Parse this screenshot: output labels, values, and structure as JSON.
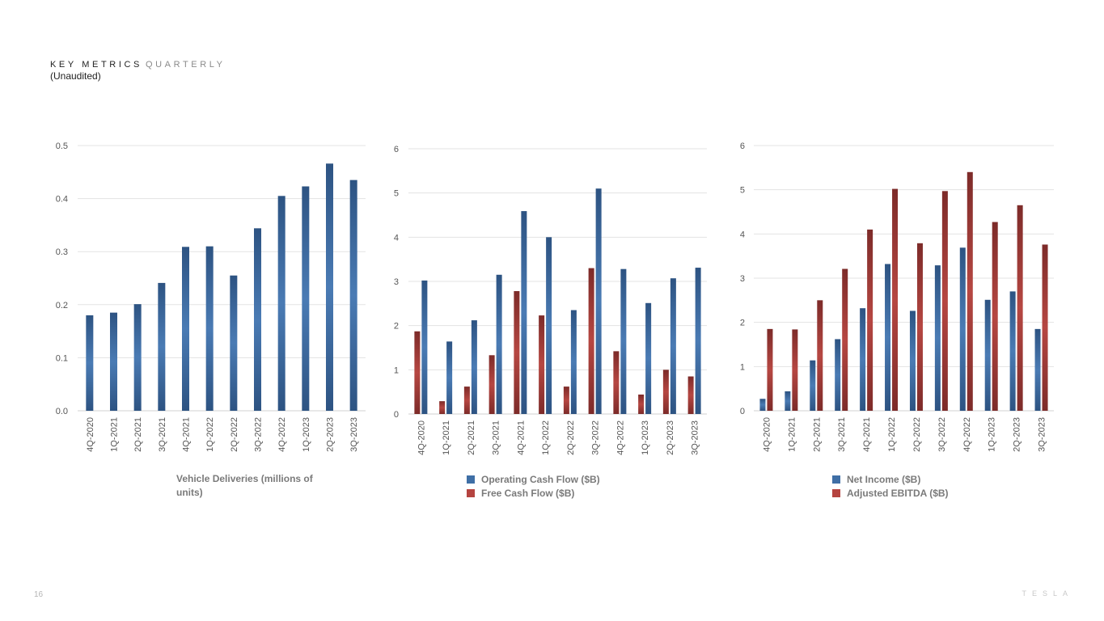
{
  "header": {
    "title_bold": "KEY METRICS",
    "title_light": "QUARTERLY",
    "subtitle": "(Unaudited)"
  },
  "page_number": "16",
  "brand": "TESLA",
  "colors": {
    "blue": "#3c6699",
    "red": "#9e3a38",
    "grid": "#e3e3e3"
  },
  "chart_data": [
    {
      "type": "bar",
      "categories": [
        "4Q-2020",
        "1Q-2021",
        "2Q-2021",
        "3Q-2021",
        "4Q-2021",
        "1Q-2022",
        "2Q-2022",
        "3Q-2022",
        "4Q-2022",
        "1Q-2023",
        "2Q-2023",
        "3Q-2023"
      ],
      "series": [
        {
          "name": "Vehicle Deliveries (millions of units)",
          "values": [
            0.18,
            0.185,
            0.201,
            0.241,
            0.309,
            0.31,
            0.255,
            0.344,
            0.405,
            0.423,
            0.466,
            0.435
          ]
        }
      ],
      "yticks": [
        "0.0",
        "0.1",
        "0.2",
        "0.3",
        "0.4",
        "0.5"
      ],
      "ylim": [
        0,
        0.5
      ],
      "legend": "bottom"
    },
    {
      "type": "bar",
      "categories": [
        "4Q-2020",
        "1Q-2021",
        "2Q-2021",
        "3Q-2021",
        "4Q-2021",
        "1Q-2022",
        "2Q-2022",
        "3Q-2022",
        "4Q-2022",
        "1Q-2023",
        "2Q-2023",
        "3Q-2023"
      ],
      "series": [
        {
          "name": "Free Cash Flow ($B)",
          "values": [
            1.87,
            0.29,
            0.62,
            1.33,
            2.78,
            2.23,
            0.62,
            3.3,
            1.42,
            0.44,
            1.0,
            0.85
          ]
        },
        {
          "name": "Operating Cash Flow ($B)",
          "values": [
            3.02,
            1.64,
            2.12,
            3.15,
            4.59,
            4.0,
            2.35,
            5.1,
            3.28,
            2.51,
            3.07,
            3.31
          ]
        }
      ],
      "legend_labels": [
        "Operating Cash Flow ($B)",
        "Free Cash Flow ($B)"
      ],
      "yticks": [
        "0",
        "1",
        "2",
        "3",
        "4",
        "5",
        "6"
      ],
      "ylim": [
        0,
        6
      ],
      "legend": "bottom"
    },
    {
      "type": "bar",
      "categories": [
        "4Q-2020",
        "1Q-2021",
        "2Q-2021",
        "3Q-2021",
        "4Q-2021",
        "1Q-2022",
        "2Q-2022",
        "3Q-2022",
        "4Q-2022",
        "1Q-2023",
        "2Q-2023",
        "3Q-2023"
      ],
      "series": [
        {
          "name": "Net Income ($B)",
          "values": [
            0.27,
            0.44,
            1.14,
            1.62,
            2.32,
            3.32,
            2.26,
            3.29,
            3.69,
            2.51,
            2.7,
            1.85
          ]
        },
        {
          "name": "Adjusted EBITDA ($B)",
          "values": [
            1.85,
            1.84,
            2.5,
            3.21,
            4.1,
            5.02,
            3.79,
            4.97,
            5.4,
            4.27,
            4.65,
            3.76
          ]
        }
      ],
      "legend_labels": [
        "Net Income ($B)",
        "Adjusted EBITDA ($B)"
      ],
      "yticks": [
        "0",
        "1",
        "2",
        "3",
        "4",
        "5",
        "6"
      ],
      "ylim": [
        0,
        6
      ],
      "legend": "bottom"
    }
  ]
}
